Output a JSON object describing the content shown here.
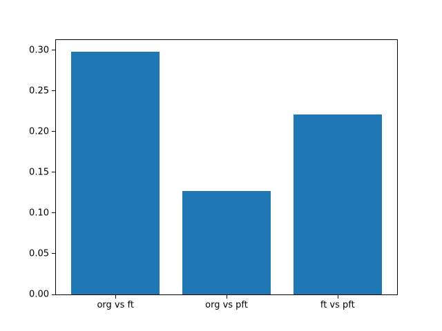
{
  "chart_data": {
    "type": "bar",
    "title": "",
    "xlabel": "",
    "ylabel": "",
    "categories": [
      "org vs ft",
      "org vs pft",
      "ft vs pft"
    ],
    "values": [
      0.298,
      0.127,
      0.221
    ],
    "ylim": [
      0,
      0.3123
    ],
    "yticks": [
      0.0,
      0.05,
      0.1,
      0.15,
      0.2,
      0.25,
      0.3
    ],
    "ytick_labels": [
      "0.00",
      "0.05",
      "0.10",
      "0.15",
      "0.20",
      "0.25",
      "0.30"
    ],
    "bar_color": "#1f77b4",
    "axes_edge_color": "#000000",
    "background_color": "#ffffff",
    "grid": false,
    "legend": null
  }
}
